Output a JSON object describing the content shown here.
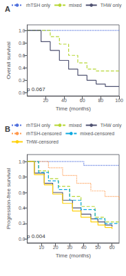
{
  "chart_data": [
    {
      "type": "step",
      "title": "A",
      "xlabel": "Time (months)",
      "ylabel": "Overall survival",
      "annotations": [
        "p 0.067"
      ],
      "xlim": [
        0,
        100
      ],
      "ylim": [
        -0.05,
        1.09
      ],
      "xticks": [
        20,
        40,
        60,
        80,
        100
      ],
      "yticks": [
        {
          "value": 0.0,
          "label": "0.0"
        },
        0.2,
        0.4,
        0.6,
        0.8,
        {
          "value": 1.0,
          "label": "1.0"
        }
      ],
      "grid": false,
      "legend": "top",
      "series": [
        {
          "name": "rhTSH only",
          "line_style": "dotted",
          "x": [
            0,
            100
          ],
          "values": [
            1.0,
            1.0
          ]
        },
        {
          "name": "mixed",
          "line_style": "dashed",
          "x": [
            0,
            25,
            35,
            45,
            55,
            65,
            75,
            100
          ],
          "values": [
            1.0,
            0.9,
            0.78,
            0.6,
            0.48,
            0.38,
            0.35,
            0.35
          ]
        },
        {
          "name": "THW only",
          "line_style": "solid",
          "x": [
            0,
            15,
            25,
            35,
            45,
            55,
            65,
            75,
            85,
            100
          ],
          "values": [
            1.0,
            0.82,
            0.68,
            0.52,
            0.38,
            0.28,
            0.2,
            0.14,
            0.1,
            0.1
          ]
        }
      ]
    },
    {
      "type": "step",
      "title": "B",
      "xlabel": "Time (months)",
      "ylabel": "Progression-free survival",
      "annotations": [
        "p 0.004"
      ],
      "xlim": [
        0,
        65
      ],
      "ylim": [
        -0.05,
        1.09
      ],
      "xticks": [
        10,
        20,
        30,
        40,
        50,
        60
      ],
      "yticks": [
        {
          "value": 0.0,
          "label": "0.0"
        },
        0.2,
        0.4,
        0.6,
        0.8,
        {
          "value": 1.0,
          "label": "1.0"
        }
      ],
      "grid": false,
      "legend": "top",
      "series": [
        {
          "name": "rhTSH only",
          "line_style": "dotted",
          "x": [
            0,
            30,
            40,
            65
          ],
          "values": [
            1.0,
            1.0,
            0.95,
            0.95
          ]
        },
        {
          "name": "mixed",
          "line_style": "dashed",
          "x": [
            0,
            8,
            15,
            22,
            30,
            38,
            48,
            55,
            65
          ],
          "values": [
            1.0,
            0.88,
            0.78,
            0.68,
            0.55,
            0.42,
            0.28,
            0.22,
            0.22
          ]
        },
        {
          "name": "THW only",
          "line_style": "solid",
          "x": [
            0,
            5,
            12,
            18,
            25,
            32,
            38,
            45,
            50,
            55,
            60
          ],
          "values": [
            1.0,
            0.85,
            0.72,
            0.6,
            0.5,
            0.4,
            0.32,
            0.26,
            0.22,
            0.18,
            0.16
          ]
        },
        {
          "name": "rhTSH-censored",
          "line_style": "dotted",
          "x": [
            0,
            15,
            25,
            35,
            45,
            55,
            65
          ],
          "values": [
            1.0,
            0.92,
            0.82,
            0.72,
            0.62,
            0.55,
            0.5
          ]
        },
        {
          "name": "mixed-censored",
          "line_style": "dashed",
          "x": [
            0,
            8,
            15,
            22,
            30,
            38,
            48,
            55,
            65
          ],
          "values": [
            1.0,
            0.86,
            0.75,
            0.64,
            0.5,
            0.38,
            0.26,
            0.2,
            0.2
          ]
        },
        {
          "name": "THW-censored",
          "line_style": "solid",
          "x": [
            0,
            5,
            12,
            18,
            25,
            32,
            38,
            45,
            50,
            55,
            60
          ],
          "values": [
            1.0,
            0.83,
            0.7,
            0.58,
            0.46,
            0.36,
            0.28,
            0.22,
            0.18,
            0.15,
            0.13
          ]
        }
      ]
    }
  ]
}
